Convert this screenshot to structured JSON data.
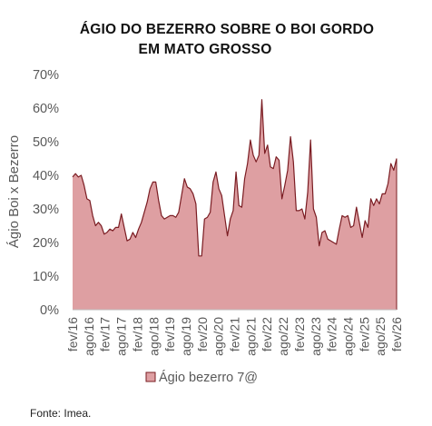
{
  "chart_data": {
    "type": "area",
    "title_lines": [
      "ÁGIO DO BEZERRO SOBRE O BOI GORDO",
      "EM MATO GROSSO"
    ],
    "ylabel": "Ágio Boi x Bezerro",
    "xlabel": "",
    "ylim": [
      0,
      70
    ],
    "y_ticks": [
      "0%",
      "10%",
      "20%",
      "30%",
      "40%",
      "50%",
      "60%",
      "70%"
    ],
    "x_tick_labels": [
      "fev/16",
      "ago/16",
      "fev/17",
      "ago/17",
      "fev/18",
      "ago/18",
      "fev/19",
      "ago/19",
      "fev/20",
      "ago/20",
      "fev/21",
      "ago/21",
      "fev/22",
      "ago/22",
      "fev/23",
      "ago/23",
      "fev/24",
      "ago/24",
      "fev/25",
      "ago/25",
      "fev/26"
    ],
    "grid": false,
    "legend": "bottom",
    "colors": {
      "fill": "#de9fa2",
      "line": "#7a1c22",
      "text": "#595959"
    },
    "series": [
      {
        "name": "Ágio bezerro 7@",
        "values": [
          39.5,
          40.5,
          39.5,
          40,
          37,
          33,
          32.5,
          28,
          25,
          26,
          25,
          22.5,
          23,
          24,
          23.5,
          24.5,
          24.5,
          28.5,
          24.5,
          20.5,
          21,
          23,
          21.5,
          24,
          26,
          29,
          32,
          36,
          38,
          38,
          32.5,
          28,
          27,
          27.5,
          28,
          28,
          27.5,
          29,
          34,
          39,
          36.5,
          36,
          34.5,
          31.5,
          16,
          16,
          27,
          27.5,
          29,
          38,
          41,
          36,
          34,
          28,
          22,
          27,
          29.5,
          41,
          31,
          30.5,
          39,
          43.5,
          50.5,
          46,
          44,
          46,
          62.5,
          46.5,
          49,
          42.5,
          42,
          45.5,
          44.5,
          33,
          37,
          41.5,
          51.5,
          44,
          29.5,
          29.5,
          30,
          27,
          35,
          50.5,
          30,
          27.5,
          19,
          23,
          23.5,
          21,
          20.5,
          20,
          19.5,
          24,
          28,
          27.5,
          28,
          24.5,
          25,
          30.5,
          26,
          21.5,
          26.5,
          24.5,
          33,
          31,
          33,
          31.5,
          34.5,
          34.5,
          37.5,
          43.5,
          41.5,
          45
        ]
      }
    ]
  },
  "source": "Fonte: Imea."
}
